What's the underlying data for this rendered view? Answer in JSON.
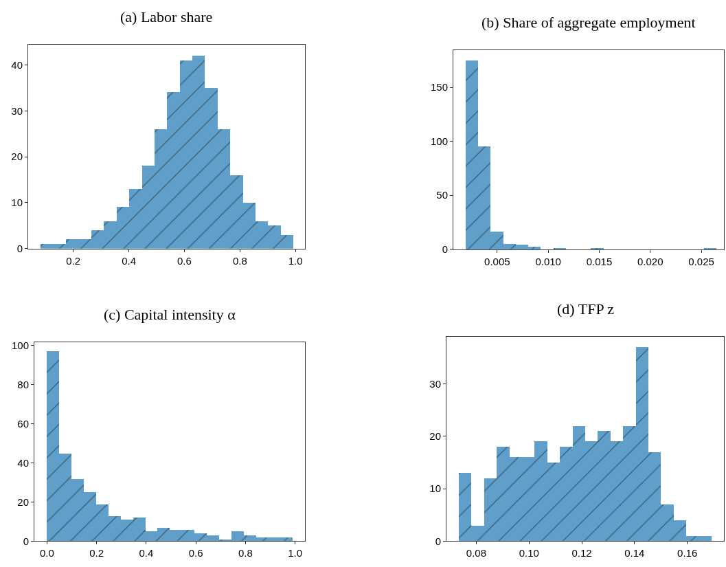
{
  "chart_data": [
    {
      "type": "histogram",
      "title": "(a) Labor share",
      "color": "#5f9fca",
      "bins": [
        0.083,
        0.128,
        0.174,
        0.219,
        0.265,
        0.31,
        0.356,
        0.401,
        0.447,
        0.492,
        0.538,
        0.583,
        0.629,
        0.674,
        0.72,
        0.765,
        0.811,
        0.856,
        0.901,
        0.947,
        0.992
      ],
      "values": [
        1,
        1,
        2,
        2,
        4,
        6,
        9,
        13,
        18,
        26,
        34,
        41,
        42,
        35,
        26,
        16,
        10,
        6,
        5,
        3
      ],
      "xlim": [
        0.0375,
        1.034
      ],
      "xticks": [
        0.2,
        0.4,
        0.6,
        0.8,
        {
          "value": 1.0,
          "label": "1.0"
        }
      ],
      "ylim": [
        0,
        44.4
      ],
      "yticks": [
        0,
        10,
        20,
        30,
        40
      ]
    },
    {
      "type": "histogram",
      "title": "(b) Share of aggregate employment",
      "color": "#5f9fca",
      "bins": [
        0.00189,
        0.00312,
        0.00435,
        0.00558,
        0.00681,
        0.00804,
        0.00927,
        0.0105,
        0.01173,
        0.01296,
        0.01419,
        0.01542,
        0.01665,
        0.01788,
        0.01911,
        0.02034,
        0.02157,
        0.0228,
        0.02403,
        0.02526,
        0.02649
      ],
      "values": [
        175,
        95,
        16,
        5,
        4,
        2,
        0,
        1,
        0,
        0,
        1,
        0,
        0,
        0,
        0,
        0,
        0,
        0,
        0,
        1
      ],
      "xlim": [
        0.0007,
        0.02722
      ],
      "xticks": [
        0.005,
        {
          "value": 0.01,
          "label": "0.010"
        },
        0.015,
        {
          "value": 0.02,
          "label": "0.020"
        },
        0.025
      ],
      "ylim": [
        0,
        184.3
      ],
      "yticks": [
        0,
        50,
        100,
        150
      ]
    },
    {
      "type": "histogram",
      "title": "(c) Capital intensity α",
      "color": "#5f9fca",
      "bins": [
        0.0,
        0.0496,
        0.0991,
        0.1487,
        0.1982,
        0.2478,
        0.2973,
        0.3469,
        0.3964,
        0.446,
        0.4955,
        0.5451,
        0.5946,
        0.6442,
        0.6937,
        0.7433,
        0.7928,
        0.8424,
        0.8919,
        0.9415,
        0.991
      ],
      "values": [
        97,
        45,
        32,
        25,
        19,
        13,
        11,
        12,
        5,
        7,
        6,
        6,
        4,
        3,
        1,
        5,
        3,
        2,
        2,
        2
      ],
      "xlim": [
        -0.0507,
        1.0396
      ],
      "xticks": [
        {
          "value": 0.0,
          "label": "0.0"
        },
        0.2,
        0.4,
        0.6,
        0.8,
        {
          "value": 1.0,
          "label": "1.0"
        }
      ],
      "ylim": [
        0,
        101.7
      ],
      "yticks": [
        0,
        20,
        40,
        60,
        80,
        100
      ]
    },
    {
      "type": "histogram",
      "title": "(d) TFP z",
      "color": "#5f9fca",
      "bins": [
        0.0734,
        0.07819,
        0.08298,
        0.08777,
        0.09256,
        0.09735,
        0.10214,
        0.10693,
        0.11172,
        0.11651,
        0.1213,
        0.12609,
        0.13088,
        0.13567,
        0.14046,
        0.14525,
        0.15004,
        0.15483,
        0.15962,
        0.16441,
        0.1692
      ],
      "values": [
        13,
        3,
        12,
        18,
        16,
        16,
        19,
        15,
        18,
        22,
        19,
        21,
        19,
        22,
        37,
        17,
        7,
        4,
        1,
        1
      ],
      "xlim": [
        0.0687,
        0.1739
      ],
      "xticks": [
        0.08,
        {
          "value": 0.1,
          "label": "0.10"
        },
        0.12,
        0.14,
        0.16
      ],
      "ylim": [
        0,
        38.96
      ],
      "yticks": [
        0,
        10,
        20,
        30
      ]
    }
  ]
}
